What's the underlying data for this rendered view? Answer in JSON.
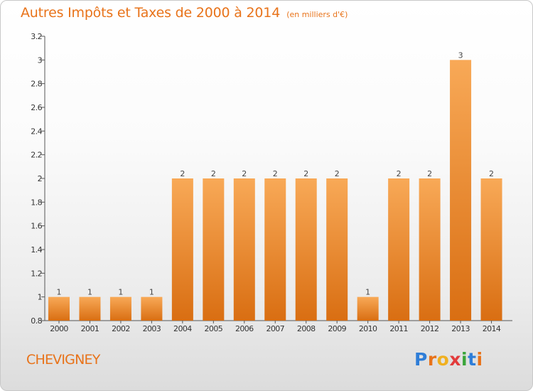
{
  "header": {
    "title": "Autres Impôts et Taxes de 2000 à 2014",
    "subtitle": "(en milliers d'€)"
  },
  "footer": {
    "city": "CHEVIGNEY",
    "logo_letters": [
      "P",
      "r",
      "o",
      "x",
      "i",
      "t",
      "i"
    ],
    "logo_colors": [
      "#2f7ed8",
      "#e8731a",
      "#f0b020",
      "#e23b3b",
      "#3aa53a",
      "#2f7ed8",
      "#e8731a"
    ]
  },
  "colors": {
    "bar_top": "#f8a957",
    "bar_bottom": "#d96e12",
    "accent": "#e8731a"
  },
  "chart_data": {
    "type": "bar",
    "title": "Autres Impôts et Taxes de 2000 à 2014",
    "subtitle": "(en milliers d'€)",
    "categories": [
      "2000",
      "2001",
      "2002",
      "2003",
      "2004",
      "2005",
      "2006",
      "2007",
      "2008",
      "2009",
      "2010",
      "2011",
      "2012",
      "2013",
      "2014"
    ],
    "values": [
      1,
      1,
      1,
      1,
      2,
      2,
      2,
      2,
      2,
      2,
      1,
      2,
      2,
      3,
      2
    ],
    "data_labels": [
      "1",
      "1",
      "1",
      "1",
      "2",
      "2",
      "2",
      "2",
      "2",
      "2",
      "1",
      "2",
      "2",
      "3",
      "2"
    ],
    "ylim": [
      0.8,
      3.2
    ],
    "yticks": [
      0.8,
      1,
      1.2,
      1.4,
      1.6,
      1.8,
      2,
      2.2,
      2.4,
      2.6,
      2.8,
      3,
      3.2
    ],
    "ytick_labels": [
      "0.8",
      "1",
      "1.2",
      "1.4",
      "1.6",
      "1.8",
      "2",
      "2.2",
      "2.4",
      "2.6",
      "2.8",
      "3",
      "3.2"
    ],
    "xlabel": "",
    "ylabel": "",
    "grid": false,
    "legend": "none"
  }
}
